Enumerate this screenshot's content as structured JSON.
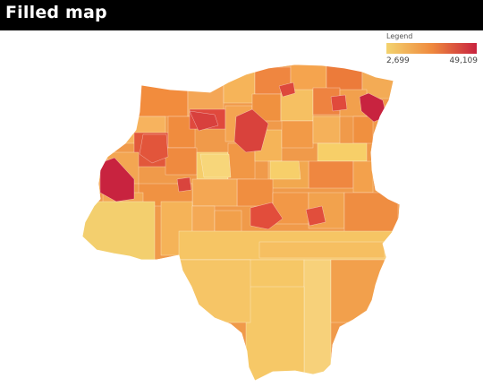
{
  "title": "Filled map",
  "legend": {
    "title": "Legend",
    "min_label": "2,699",
    "max_label": "49,109",
    "min_value": 2699,
    "max_value": 49109,
    "color_low": "#f3d36f",
    "color_mid": "#ef8a3e",
    "color_high": "#c8233f"
  },
  "colors": {
    "title_bg": "#000000",
    "title_fg": "#ffffff"
  }
}
